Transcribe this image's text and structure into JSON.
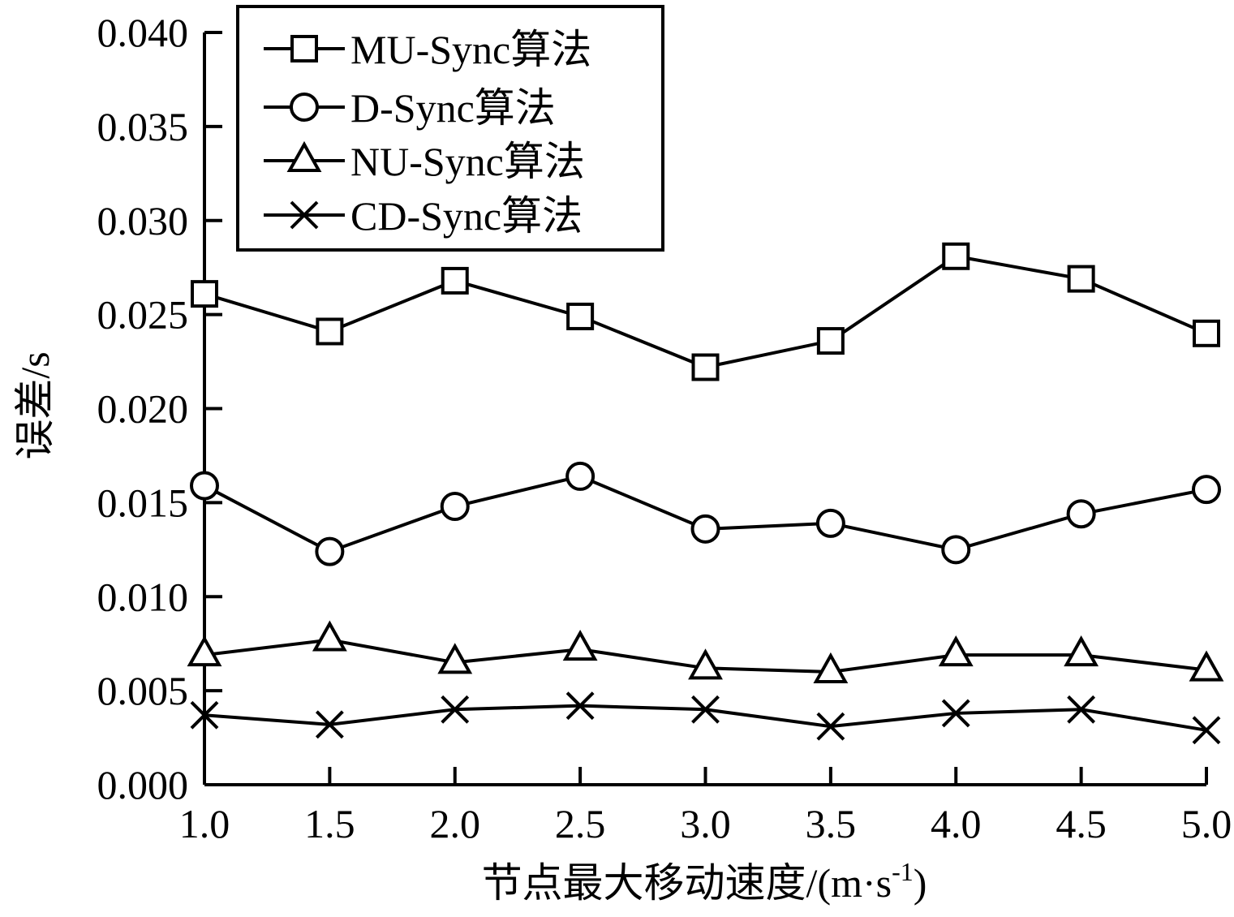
{
  "chart_data": {
    "type": "line",
    "title": "",
    "xlabel_main": "节点最大移动速度/(m·s",
    "xlabel_sup": "-1",
    "xlabel_close": ")",
    "ylabel": "误差/s",
    "x": [
      1.0,
      1.5,
      2.0,
      2.5,
      3.0,
      3.5,
      4.0,
      4.5,
      5.0
    ],
    "x_tick_labels": [
      "1.0",
      "1.5",
      "2.0",
      "2.5",
      "3.0",
      "3.5",
      "4.0",
      "4.5",
      "5.0"
    ],
    "y_tick_labels": [
      "0.000",
      "0.005",
      "0.010",
      "0.015",
      "0.020",
      "0.025",
      "0.030",
      "0.035",
      "0.040"
    ],
    "y_ticks": [
      0.0,
      0.005,
      0.01,
      0.015,
      0.02,
      0.025,
      0.03,
      0.035,
      0.04
    ],
    "xlim": [
      1.0,
      5.0
    ],
    "ylim": [
      0.0,
      0.04
    ],
    "grid": false,
    "legend_position": "top-left",
    "series": [
      {
        "name": "MU-Sync算法",
        "marker": "square",
        "values": [
          0.0261,
          0.0241,
          0.0268,
          0.0249,
          0.0222,
          0.0236,
          0.0281,
          0.0269,
          0.024
        ]
      },
      {
        "name": "D-Sync算法",
        "marker": "circle",
        "values": [
          0.0159,
          0.0124,
          0.0148,
          0.0164,
          0.0136,
          0.0139,
          0.0125,
          0.0144,
          0.0157
        ]
      },
      {
        "name": "NU-Sync算法",
        "marker": "triangle",
        "values": [
          0.0069,
          0.0077,
          0.0065,
          0.0072,
          0.0062,
          0.006,
          0.0069,
          0.0069,
          0.0061
        ]
      },
      {
        "name": "CD-Sync算法",
        "marker": "x",
        "values": [
          0.0037,
          0.0032,
          0.004,
          0.0042,
          0.004,
          0.0031,
          0.0038,
          0.004,
          0.0029
        ]
      }
    ]
  }
}
